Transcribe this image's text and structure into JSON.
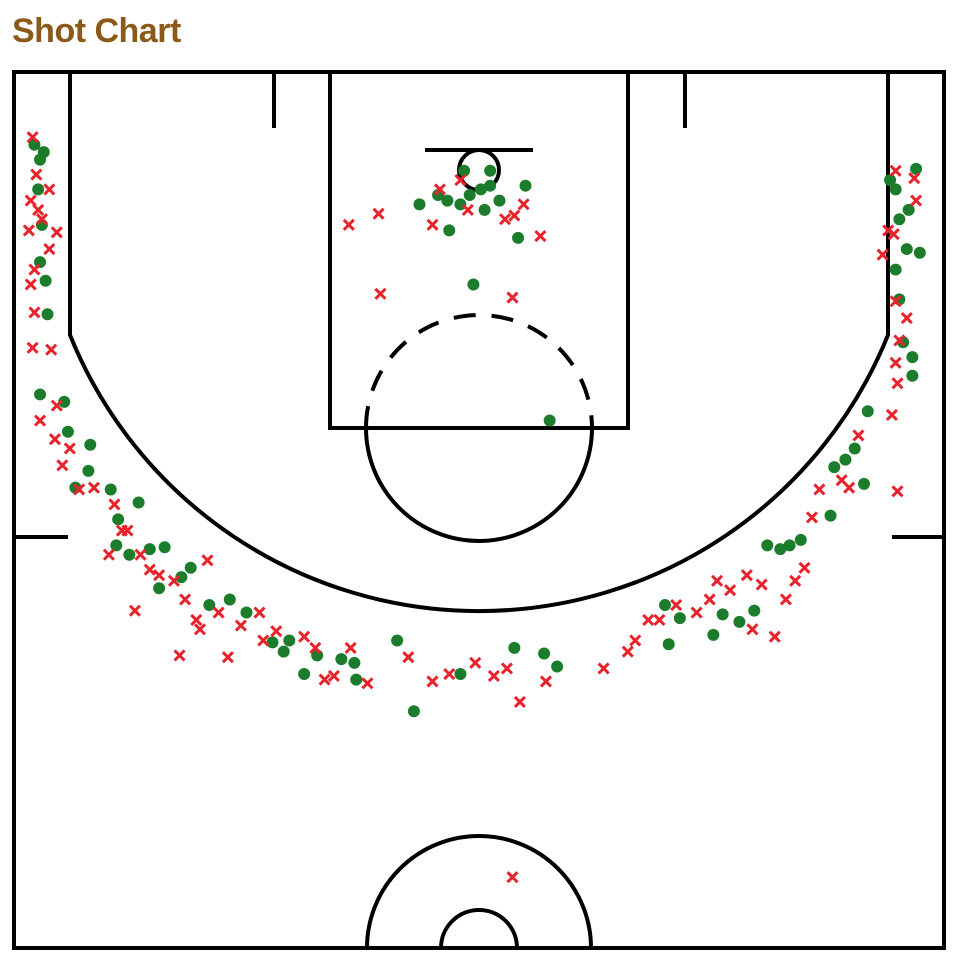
{
  "chart_data": {
    "type": "scatter",
    "title": "Shot Chart",
    "xlim": [
      0,
      50
    ],
    "ylim": [
      0,
      47
    ],
    "series": [
      {
        "color": "#1b7d2b",
        "marker": "circle",
        "x": [
          1.1,
          1.4,
          1.6,
          1.3,
          1.5,
          1.4,
          1.7,
          1.8,
          1.4,
          2.7,
          2.9,
          4.1,
          4.0,
          3.3,
          5.2,
          6.7,
          5.6,
          5.5,
          6.2,
          7.3,
          8.1,
          7.8,
          9.5,
          9.0,
          10.5,
          11.6,
          12.5,
          13.9,
          14.8,
          14.5,
          15.6,
          16.3,
          17.6,
          18.3,
          18.4,
          20.6,
          21.5,
          24.0,
          26.9,
          28.5,
          29.2,
          22.8,
          23.3,
          24.0,
          24.5,
          25.1,
          25.6,
          24.2,
          25.6,
          27.5,
          21.8,
          26.1,
          25.3,
          23.4,
          27.1,
          24.7,
          28.8,
          35.0,
          35.2,
          35.8,
          37.6,
          38.1,
          39.0,
          39.8,
          40.5,
          41.2,
          41.7,
          42.3,
          43.9,
          44.1,
          44.7,
          45.2,
          45.9,
          45.7,
          48.3,
          48.3,
          47.8,
          47.6,
          47.4,
          48.0,
          48.7,
          47.6,
          48.1,
          47.4,
          48.5,
          47.1
        ],
        "y": [
          3.9,
          4.7,
          4.3,
          6.3,
          8.2,
          10.2,
          11.2,
          13.0,
          17.3,
          17.7,
          19.3,
          20.0,
          21.4,
          22.3,
          22.4,
          23.1,
          24.0,
          25.4,
          25.9,
          25.6,
          25.5,
          27.7,
          26.6,
          27.1,
          28.6,
          28.3,
          29.0,
          30.6,
          30.5,
          31.1,
          32.3,
          31.3,
          31.5,
          31.7,
          32.6,
          30.5,
          34.3,
          32.3,
          30.9,
          31.2,
          31.9,
          6.6,
          6.9,
          7.1,
          6.6,
          6.3,
          6.1,
          5.3,
          5.3,
          6.1,
          7.1,
          6.9,
          7.4,
          8.5,
          8.9,
          11.4,
          18.7,
          28.6,
          30.7,
          29.3,
          30.2,
          29.1,
          29.5,
          28.9,
          25.4,
          25.6,
          25.4,
          25.1,
          23.8,
          21.2,
          20.8,
          20.2,
          18.2,
          22.1,
          16.3,
          15.3,
          14.5,
          12.2,
          10.6,
          9.5,
          9.7,
          7.9,
          7.4,
          6.3,
          5.2,
          5.8
        ]
      },
      {
        "color": "#e8232c",
        "marker": "x",
        "x": [
          1.0,
          1.2,
          0.9,
          1.3,
          1.5,
          0.8,
          1.9,
          2.3,
          1.1,
          0.9,
          1.9,
          1.1,
          1.0,
          2.0,
          2.3,
          1.4,
          2.2,
          3.0,
          2.6,
          3.5,
          4.3,
          5.4,
          5.8,
          5.1,
          6.1,
          6.8,
          7.3,
          7.8,
          8.6,
          6.5,
          9.2,
          9.8,
          10.4,
          10.0,
          11.0,
          12.2,
          13.2,
          8.9,
          11.5,
          13.4,
          14.1,
          15.6,
          16.2,
          17.2,
          16.7,
          18.1,
          19.0,
          21.2,
          22.5,
          23.4,
          24.8,
          25.8,
          26.5,
          27.2,
          28.6,
          31.7,
          18.0,
          19.6,
          22.5,
          26.4,
          26.9,
          27.4,
          28.3,
          24.0,
          22.9,
          19.7,
          26.8,
          24.4,
          33.0,
          33.4,
          34.1,
          34.7,
          35.6,
          36.7,
          37.4,
          37.8,
          38.5,
          39.4,
          39.7,
          40.2,
          40.9,
          41.5,
          42.0,
          42.5,
          42.9,
          43.3,
          44.5,
          44.9,
          45.4,
          47.5,
          47.2,
          47.5,
          47.4,
          47.6,
          48.0,
          47.4,
          46.7,
          47.0,
          47.4,
          48.4,
          48.5,
          47.3,
          26.8
        ],
        "y": [
          3.5,
          5.5,
          6.9,
          7.4,
          7.9,
          8.5,
          6.3,
          8.6,
          10.6,
          11.4,
          9.5,
          12.9,
          14.8,
          14.9,
          17.9,
          18.7,
          19.7,
          20.2,
          21.1,
          22.4,
          22.3,
          23.2,
          24.6,
          25.9,
          24.6,
          25.9,
          26.7,
          27.0,
          27.3,
          28.9,
          28.3,
          29.4,
          26.2,
          29.9,
          29.0,
          29.7,
          29.0,
          31.3,
          31.4,
          30.5,
          30.0,
          30.3,
          30.9,
          32.4,
          32.6,
          30.9,
          32.8,
          31.4,
          32.7,
          32.3,
          31.7,
          32.4,
          32.0,
          33.8,
          32.7,
          32.0,
          8.2,
          7.6,
          8.2,
          7.9,
          7.7,
          7.1,
          8.8,
          5.8,
          6.3,
          11.9,
          12.1,
          7.4,
          31.1,
          30.5,
          29.4,
          29.4,
          28.6,
          29.0,
          28.3,
          27.3,
          27.8,
          27.0,
          29.9,
          27.5,
          30.3,
          28.3,
          27.3,
          26.6,
          23.9,
          22.4,
          21.9,
          22.3,
          19.5,
          22.5,
          18.4,
          16.7,
          15.6,
          14.4,
          13.2,
          12.3,
          9.8,
          8.5,
          5.3,
          5.7,
          6.9,
          8.7,
          43.2
        ]
      }
    ]
  }
}
